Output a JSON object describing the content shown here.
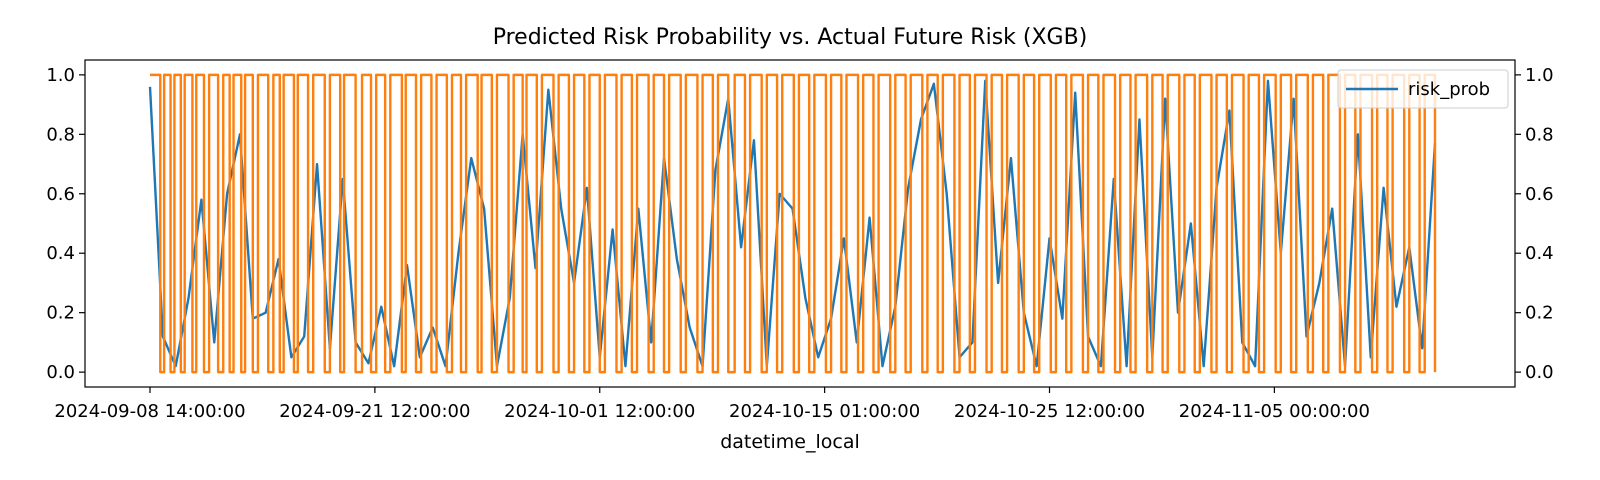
{
  "chart_data": {
    "type": "line",
    "title": "Predicted Risk Probability vs. Actual Future Risk (XGB)",
    "xlabel": "datetime_local",
    "ylabel": "",
    "ylim_left": [
      -0.05,
      1.05
    ],
    "ylim_right": [
      -0.05,
      1.05
    ],
    "y_ticks_left": [
      "0.0",
      "0.2",
      "0.4",
      "0.6",
      "0.8",
      "1.0"
    ],
    "y_ticks_right": [
      "0.0",
      "0.2",
      "0.4",
      "0.6",
      "0.8",
      "1.0"
    ],
    "x_tick_labels": [
      "2024-09-08 14:00:00",
      "2024-09-21 12:00:00",
      "2024-10-01 12:00:00",
      "2024-10-15 01:00:00",
      "2024-10-25 12:00:00",
      "2024-11-05 00:00:00"
    ],
    "x_range": [
      0,
      100
    ],
    "x_tick_positions": [
      0,
      17.5,
      35,
      52.5,
      70,
      87.5
    ],
    "legend": {
      "location": "top-right",
      "entries": [
        "risk_prob"
      ]
    },
    "grid": false,
    "series": [
      {
        "name": "risk_prob",
        "axis": "left",
        "color": "#1f77b4",
        "x": [
          0,
          1,
          2,
          3,
          4,
          5,
          6,
          7,
          8,
          9,
          10,
          11,
          12,
          13,
          14,
          15,
          16,
          17,
          18,
          19,
          20,
          21,
          22,
          23,
          24,
          25,
          26,
          27,
          28,
          29,
          30,
          31,
          32,
          33,
          34,
          35,
          36,
          37,
          38,
          39,
          40,
          41,
          42,
          43,
          44,
          45,
          46,
          47,
          48,
          49,
          50,
          51,
          52,
          53,
          54,
          55,
          56,
          57,
          58,
          59,
          60,
          61,
          62,
          63,
          64,
          65,
          66,
          67,
          68,
          69,
          70,
          71,
          72,
          73,
          74,
          75,
          76,
          77,
          78,
          79,
          80,
          81,
          82,
          83,
          84,
          85,
          86,
          87,
          88,
          89,
          90,
          91,
          92,
          93,
          94,
          95,
          96,
          97,
          98,
          99,
          100
        ],
        "y": [
          0.96,
          0.12,
          0.02,
          0.25,
          0.58,
          0.1,
          0.6,
          0.8,
          0.18,
          0.2,
          0.38,
          0.05,
          0.12,
          0.7,
          0.08,
          0.65,
          0.1,
          0.03,
          0.22,
          0.02,
          0.36,
          0.05,
          0.15,
          0.02,
          0.4,
          0.72,
          0.55,
          0.02,
          0.25,
          0.8,
          0.35,
          0.95,
          0.55,
          0.3,
          0.62,
          0.05,
          0.48,
          0.02,
          0.55,
          0.1,
          0.72,
          0.38,
          0.15,
          0.02,
          0.68,
          0.92,
          0.42,
          0.78,
          0.02,
          0.6,
          0.55,
          0.25,
          0.05,
          0.18,
          0.45,
          0.1,
          0.52,
          0.02,
          0.22,
          0.62,
          0.85,
          0.97,
          0.6,
          0.05,
          0.1,
          0.98,
          0.3,
          0.72,
          0.2,
          0.02,
          0.45,
          0.18,
          0.94,
          0.12,
          0.02,
          0.65,
          0.02,
          0.85,
          0.05,
          0.92,
          0.2,
          0.5,
          0.02,
          0.62,
          0.88,
          0.1,
          0.02,
          0.98,
          0.4,
          0.92,
          0.12,
          0.3,
          0.55,
          0.02,
          0.8,
          0.05,
          0.62,
          0.22,
          0.42,
          0.08,
          0.77
        ]
      },
      {
        "name": "",
        "axis": "right",
        "color": "#ff7f0e",
        "step": true,
        "x": [
          0,
          0.8,
          1.1,
          1.6,
          1.9,
          2.4,
          2.7,
          3.3,
          3.6,
          4.2,
          4.6,
          5.3,
          5.7,
          6.2,
          6.5,
          7.1,
          7.4,
          8.0,
          8.4,
          9.2,
          9.6,
          10.1,
          10.4,
          11.2,
          11.5,
          12.3,
          12.7,
          13.6,
          14.0,
          14.8,
          15.1,
          16.0,
          16.5,
          17.2,
          17.6,
          18.3,
          18.7,
          19.6,
          19.9,
          20.7,
          21.1,
          21.9,
          22.3,
          23.1,
          23.5,
          24.2,
          24.6,
          25.5,
          25.8,
          26.6,
          27.0,
          27.9,
          28.3,
          29.0,
          29.3,
          30.1,
          30.5,
          31.4,
          31.8,
          32.6,
          33.0,
          33.8,
          34.2,
          35.0,
          35.4,
          36.3,
          36.7,
          37.5,
          37.9,
          38.8,
          39.2,
          40.0,
          40.4,
          41.3,
          41.7,
          42.6,
          43.0,
          43.8,
          44.2,
          45.0,
          45.5,
          46.3,
          46.7,
          47.6,
          48.0,
          48.8,
          49.2,
          50.1,
          50.5,
          51.3,
          51.7,
          52.6,
          53.0,
          53.8,
          54.2,
          55.1,
          55.5,
          56.3,
          56.7,
          57.6,
          58.0,
          58.8,
          59.2,
          60.1,
          60.5,
          61.3,
          61.7,
          62.6,
          63.0,
          63.8,
          64.2,
          65.1,
          65.5,
          66.3,
          66.7,
          67.6,
          68.0,
          68.8,
          69.2,
          70.1,
          70.5,
          71.3,
          71.7,
          72.6,
          73.0,
          73.8,
          74.2,
          75.1,
          75.5,
          76.3,
          76.7,
          77.6,
          78.0,
          78.8,
          79.2,
          80.1,
          80.5,
          81.3,
          81.7,
          82.6,
          83.0,
          83.8,
          84.2,
          85.1,
          85.5,
          86.3,
          86.7,
          87.6,
          88.0,
          88.8,
          89.2,
          90.1,
          90.5,
          91.3,
          91.7,
          92.6,
          93.0,
          93.8,
          94.2,
          95.1,
          95.5,
          96.3,
          96.7,
          97.6,
          98.0,
          98.8,
          99.2,
          100
        ],
        "y": [
          1,
          0,
          1,
          0,
          1,
          0,
          1,
          0,
          1,
          0,
          1,
          0,
          1,
          0,
          1,
          0,
          1,
          0,
          1,
          0,
          1,
          0,
          1,
          0,
          1,
          0,
          1,
          0,
          1,
          0,
          1,
          0,
          1,
          0,
          1,
          0,
          1,
          0,
          1,
          0,
          1,
          0,
          1,
          0,
          1,
          0,
          1,
          0,
          1,
          0,
          1,
          0,
          1,
          0,
          1,
          0,
          1,
          0,
          1,
          0,
          1,
          0,
          1,
          0,
          1,
          0,
          1,
          0,
          1,
          0,
          1,
          0,
          1,
          0,
          1,
          0,
          1,
          0,
          1,
          0,
          1,
          0,
          1,
          0,
          1,
          0,
          1,
          0,
          1,
          0,
          1,
          0,
          1,
          0,
          1,
          0,
          1,
          0,
          1,
          0,
          1,
          0,
          1,
          0,
          1,
          0,
          1,
          0,
          1,
          0,
          1,
          0,
          1,
          0,
          1,
          0,
          1,
          0,
          1,
          0,
          1,
          0,
          1,
          0,
          1,
          0,
          1,
          0,
          1,
          0,
          1,
          0,
          1,
          0,
          1,
          0,
          1,
          0,
          1,
          0,
          1,
          0,
          1,
          0,
          1,
          0,
          1,
          0,
          1,
          0,
          1,
          0,
          1,
          0,
          1,
          0,
          1,
          0,
          1,
          0,
          1,
          0,
          1,
          0,
          1,
          0,
          1,
          0
        ]
      }
    ]
  }
}
